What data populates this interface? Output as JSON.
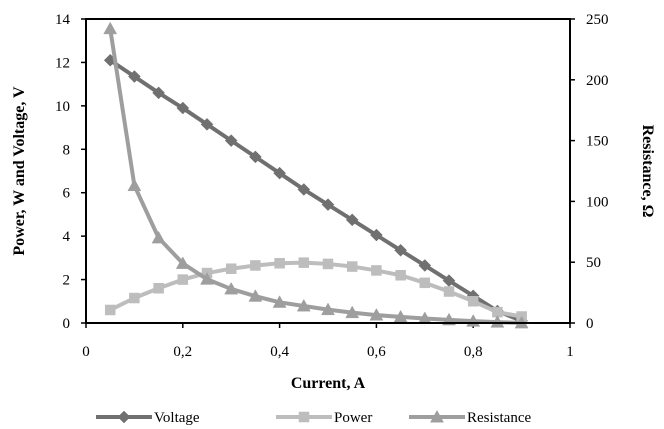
{
  "chart_data": {
    "type": "line",
    "title": "",
    "xlabel": "Current, A",
    "ylabel_left": "Power, W and Voltage, V",
    "ylabel_right": "Resistance, Ω",
    "xlim": [
      0,
      1
    ],
    "ylim_left": [
      0,
      14
    ],
    "ylim_right": [
      0,
      250
    ],
    "x_ticks": [
      "0",
      "0,2",
      "0,4",
      "0,6",
      "0,8",
      "1"
    ],
    "x_tick_values": [
      0,
      0.2,
      0.4,
      0.6,
      0.8,
      1
    ],
    "y_left_ticks": [
      "0",
      "2",
      "4",
      "6",
      "8",
      "10",
      "12",
      "14"
    ],
    "y_left_tick_values": [
      0,
      2,
      4,
      6,
      8,
      10,
      12,
      14
    ],
    "y_right_ticks": [
      "0",
      "50",
      "100",
      "150",
      "200",
      "250"
    ],
    "y_right_tick_values": [
      0,
      50,
      100,
      150,
      200,
      250
    ],
    "grid": false,
    "legend_position": "bottom",
    "x": [
      0.05,
      0.1,
      0.15,
      0.2,
      0.25,
      0.3,
      0.35,
      0.4,
      0.45,
      0.5,
      0.55,
      0.6,
      0.65,
      0.7,
      0.75,
      0.8,
      0.85,
      0.9
    ],
    "series": [
      {
        "name": "Voltage",
        "axis": "left",
        "marker": "diamond",
        "color": "#707070",
        "values": [
          12.1,
          11.35,
          10.6,
          9.9,
          9.15,
          8.4,
          7.65,
          6.9,
          6.15,
          5.45,
          4.75,
          4.05,
          3.35,
          2.65,
          1.95,
          1.25,
          0.55,
          0.1
        ]
      },
      {
        "name": "Power",
        "axis": "left",
        "marker": "square",
        "color": "#bdbdbd",
        "values": [
          0.6,
          1.15,
          1.6,
          2.0,
          2.3,
          2.5,
          2.65,
          2.75,
          2.78,
          2.72,
          2.6,
          2.42,
          2.2,
          1.85,
          1.45,
          1.0,
          0.5,
          0.3
        ]
      },
      {
        "name": "Resistance",
        "axis": "right",
        "marker": "triangle",
        "color": "#9e9e9e",
        "values": [
          242,
          113,
          70,
          49,
          36,
          28,
          22,
          17,
          14,
          11,
          8.5,
          6.5,
          5,
          3.7,
          2.6,
          1.5,
          0.7,
          0.1
        ]
      }
    ]
  }
}
